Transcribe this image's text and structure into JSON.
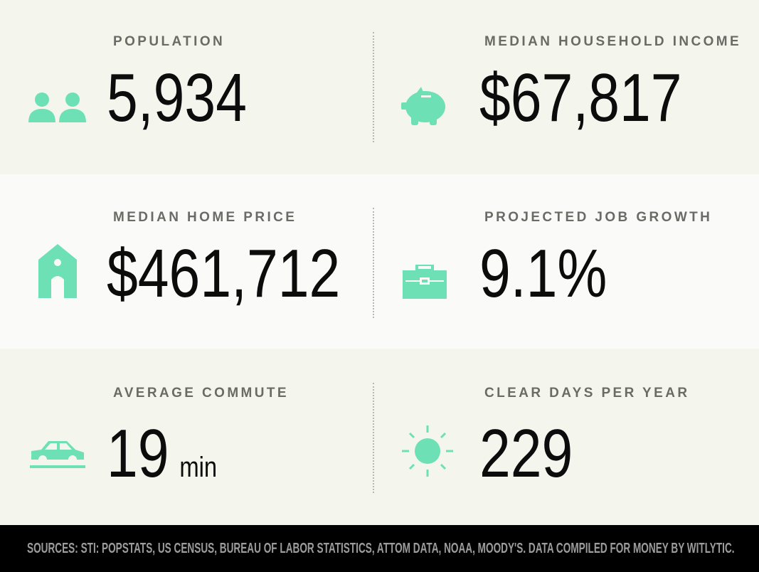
{
  "stats": [
    {
      "label": "POPULATION",
      "value": "5,934"
    },
    {
      "label": "MEDIAN HOUSEHOLD INCOME",
      "value": "$67,817"
    },
    {
      "label": "MEDIAN HOME PRICE",
      "value": "$461,712"
    },
    {
      "label": "PROJECTED JOB GROWTH",
      "value": "9.1%"
    },
    {
      "label": "AVERAGE COMMUTE",
      "value": "19",
      "unit": "min"
    },
    {
      "label": "CLEAR DAYS PER YEAR",
      "value": "229"
    }
  ],
  "footer": "SOURCES: STI: POPSTATS, US CENSUS, BUREAU OF LABOR STATISTICS, ATTOM DATA, NOAA, MOODY'S. DATA COMPILED FOR MONEY BY WITLYTIC."
}
